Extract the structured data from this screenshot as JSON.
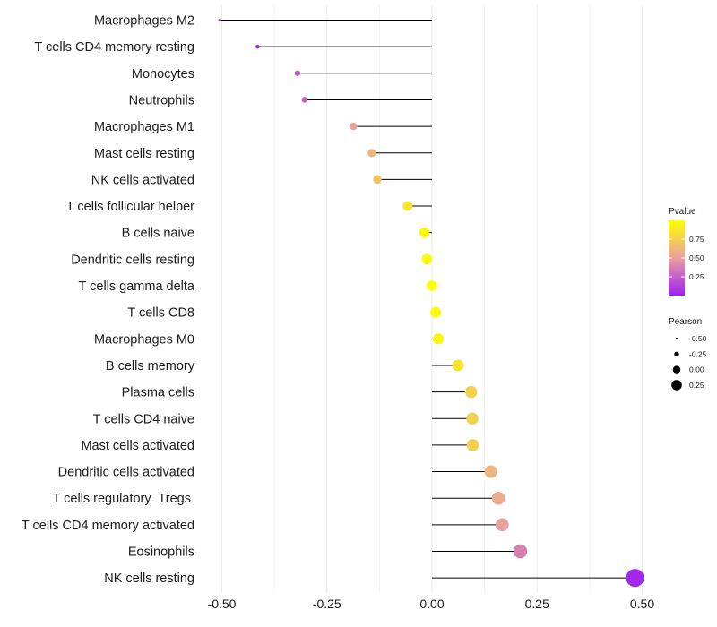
{
  "chart_data": {
    "type": "lollipop",
    "title": "",
    "xlabel": "",
    "ylabel": "",
    "xlim": [
      -0.55,
      0.55
    ],
    "x_ticks": [
      -0.5,
      -0.25,
      0.0,
      0.25,
      0.5
    ],
    "x_tick_labels": [
      "-0.50",
      "-0.25",
      "0.00",
      "0.25",
      "0.50"
    ],
    "grid": true,
    "baseline": 0,
    "categories": [
      "Macrophages M2",
      "T cells CD4 memory resting",
      "Monocytes",
      "Neutrophils",
      "Macrophages M1",
      "Mast cells resting",
      "NK cells activated",
      "T cells follicular helper",
      "B cells naive",
      "Dendritic cells resting",
      "T cells gamma delta",
      "T cells CD8",
      "Macrophages M0",
      "B cells memory",
      "Plasma cells",
      "T cells CD4 naive",
      "Mast cells activated",
      "Dendritic cells activated",
      "T cells regulatory  Tregs ",
      "T cells CD4 memory activated",
      "Eosinophils",
      "NK cells resting"
    ],
    "pearson": [
      -0.505,
      -0.415,
      -0.32,
      -0.303,
      -0.187,
      -0.143,
      -0.13,
      -0.058,
      -0.018,
      -0.012,
      0.0,
      0.009,
      0.015,
      0.062,
      0.093,
      0.096,
      0.097,
      0.14,
      0.158,
      0.167,
      0.21,
      0.483
    ],
    "pvalue": [
      0.02,
      0.07,
      0.2,
      0.25,
      0.52,
      0.62,
      0.7,
      0.86,
      0.95,
      0.97,
      1.0,
      0.98,
      0.96,
      0.85,
      0.76,
      0.75,
      0.75,
      0.6,
      0.55,
      0.5,
      0.38,
      0.03
    ],
    "legend_pvalue": {
      "title": "Pvalue",
      "ticks": [
        0.25,
        0.5,
        0.75
      ],
      "tick_labels": [
        "0.25",
        "0.50",
        "0.75"
      ],
      "range": [
        0.0,
        1.0
      ],
      "colors": [
        "#a020f0",
        "#e8a0a0",
        "#ffff00"
      ],
      "placement": "right"
    },
    "legend_pearson": {
      "title": "Pearson",
      "values": [
        -0.5,
        -0.25,
        0.0,
        0.25
      ],
      "labels": [
        "-0.50",
        "-0.25",
        "0.00",
        "0.25"
      ],
      "placement": "right"
    },
    "stick_color": "#000000",
    "grid_color": "#ebebeb"
  }
}
